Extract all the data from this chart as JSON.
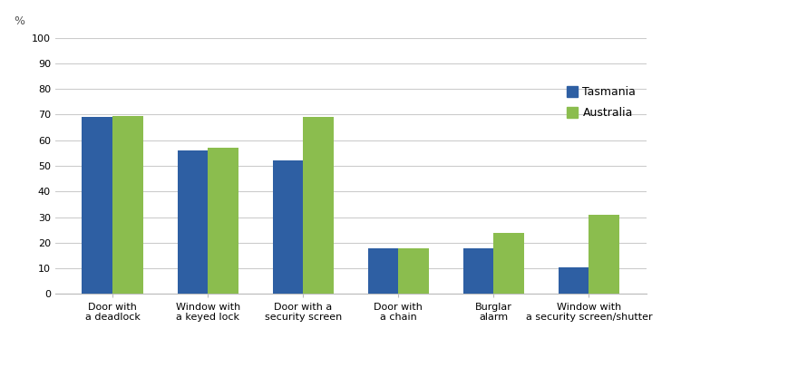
{
  "categories": [
    "Door with\na deadlock",
    "Window with\na keyed lock",
    "Door with a\nsecurity screen",
    "Door with\na chain",
    "Burglar\nalarm",
    "Window with\na security screen/shutter"
  ],
  "tasmania": [
    69,
    56,
    52,
    18,
    18,
    10.5
  ],
  "australia": [
    69.5,
    57,
    69,
    18,
    24,
    31
  ],
  "tasmania_color": "#2E5FA3",
  "australia_color": "#8BBD4E",
  "ylim": [
    0,
    100
  ],
  "yticks": [
    0,
    10,
    20,
    30,
    40,
    50,
    60,
    70,
    80,
    90,
    100
  ],
  "legend_tasmania": "Tasmania",
  "legend_australia": "Australia",
  "bar_width": 0.32,
  "grid_color": "#CCCCCC",
  "background_color": "#FFFFFF",
  "tick_label_fontsize": 8,
  "legend_fontsize": 9,
  "percent_label": "%"
}
